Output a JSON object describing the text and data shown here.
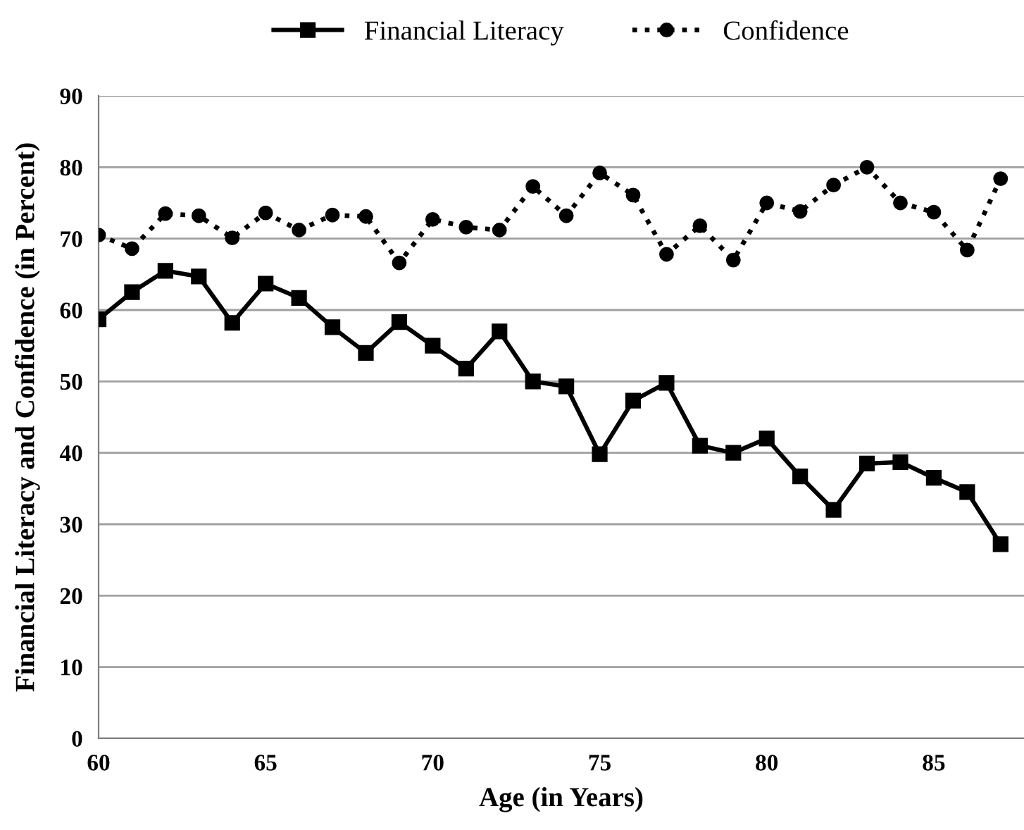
{
  "chart_data": {
    "type": "line",
    "xlabel": "Age (in Years)",
    "ylabel": "Financial Literacy and Confidence (in Percent)",
    "x": [
      60,
      61,
      62,
      63,
      64,
      65,
      66,
      67,
      68,
      69,
      70,
      71,
      72,
      73,
      74,
      75,
      76,
      77,
      78,
      79,
      80,
      81,
      82,
      83,
      84,
      85,
      86,
      87
    ],
    "series": [
      {
        "name": "Financial Literacy",
        "color": "#000000",
        "marker": "square",
        "line_style": "solid",
        "values": [
          58.7,
          62.5,
          65.5,
          64.7,
          58.2,
          63.7,
          61.7,
          57.6,
          54,
          58.3,
          55,
          51.8,
          57,
          50,
          49.3,
          39.8,
          47.3,
          49.8,
          41,
          40,
          42,
          36.7,
          32,
          38.5,
          38.7,
          36.5,
          34.5,
          27.2
        ]
      },
      {
        "name": "Confidence",
        "color": "#000000",
        "marker": "circle",
        "line_style": "dotted",
        "values": [
          70.5,
          68.6,
          73.5,
          73.2,
          70.1,
          73.6,
          71.2,
          73.3,
          73.1,
          66.6,
          72.7,
          71.6,
          71.2,
          77.3,
          73.2,
          79.2,
          76.1,
          67.8,
          71.8,
          67,
          75,
          73.8,
          77.5,
          80,
          75,
          73.7,
          68.4,
          78.4
        ]
      }
    ],
    "xlim": [
      60,
      87.7
    ],
    "xticks": [
      60,
      65,
      70,
      75,
      80,
      85
    ],
    "ylim": [
      0,
      90
    ],
    "yticks": [
      0,
      10,
      20,
      30,
      40,
      50,
      60,
      70,
      80,
      90
    ],
    "grid": "y",
    "legend": "top"
  }
}
